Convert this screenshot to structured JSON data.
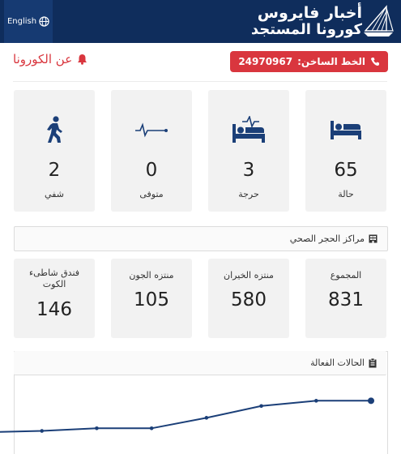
{
  "header": {
    "language_button": "English",
    "brand_line1": "أخبار فايروس",
    "brand_line2": "كورونا المستجد"
  },
  "hotline": {
    "label": "الخط الساخن:",
    "number": "24970967"
  },
  "about_link": "عن الكورونا",
  "stats": [
    {
      "value": "65",
      "label": "حالة",
      "icon": "bed-icon"
    },
    {
      "value": "3",
      "label": "حرجة",
      "icon": "critical-bed-icon"
    },
    {
      "value": "0",
      "label": "متوفى",
      "icon": "flatline-icon"
    },
    {
      "value": "2",
      "label": "شفي",
      "icon": "walking-person-icon"
    }
  ],
  "quarantine": {
    "title": "مراكز الحجر الصحي",
    "icon": "building-icon",
    "centers": [
      {
        "label": "المجموع",
        "value": "831"
      },
      {
        "label": "منتزه الخيران",
        "value": "580"
      },
      {
        "label": "منتزه الجون",
        "value": "105"
      },
      {
        "label": "فندق شاطىء الكوت",
        "value": "146"
      }
    ]
  },
  "active_cases": {
    "title": "الحالات الفعالة",
    "icon": "clipboard-icon"
  },
  "chart_data": {
    "type": "line",
    "x": [
      1,
      2,
      3,
      4,
      5,
      6,
      7,
      8
    ],
    "series": [
      {
        "values": [
          16,
          17,
          19,
          19,
          27,
          36,
          40,
          40
        ]
      }
    ],
    "ylim": [
      0,
      60
    ]
  },
  "colors": {
    "header_bg": "#0f2d5c",
    "accent_red": "#d9363e",
    "icon_navy": "#1b3f78",
    "card_bg": "#f2f2f2"
  }
}
